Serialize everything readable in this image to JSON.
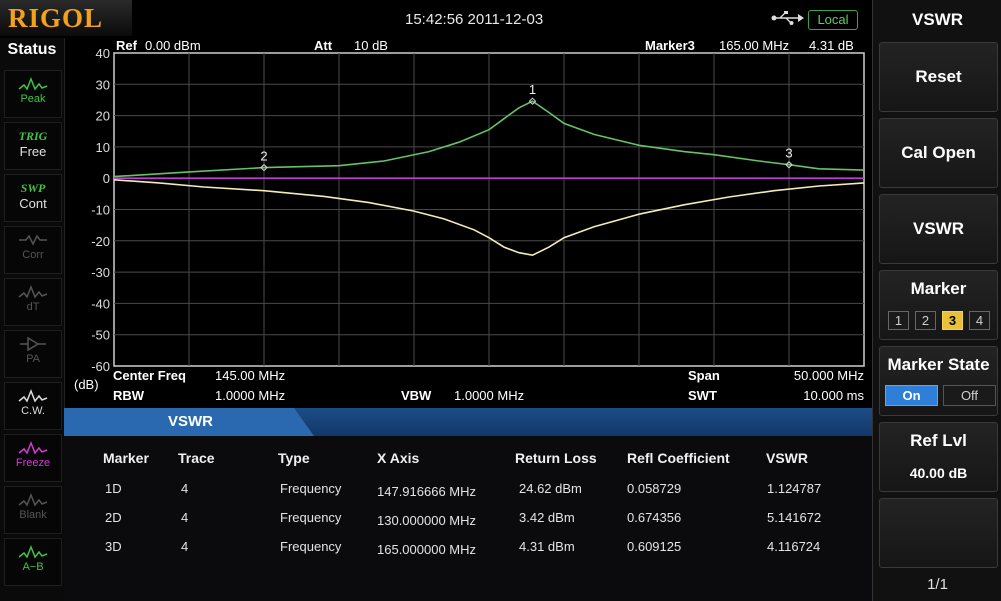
{
  "header": {
    "logo": "RIGOL",
    "datetime": "15:42:56 2011-12-03",
    "remote_status": "Local",
    "colors": {
      "logo": "#f3a21a",
      "local": "#5dd15d"
    }
  },
  "status": {
    "title": "Status",
    "items": [
      {
        "label": "Peak",
        "icon": "peak-icon",
        "color": "#44c244"
      },
      {
        "label": "TRIG",
        "value": "Free",
        "color": "#44c244"
      },
      {
        "label": "SWP",
        "value": "Cont",
        "color": "#44c244"
      },
      {
        "label": "Corr",
        "icon": "corr-icon",
        "color": "#555555"
      },
      {
        "label": "dT",
        "icon": "dt-icon",
        "color": "#555555"
      },
      {
        "label": "PA",
        "icon": "pa-icon",
        "color": "#555555"
      },
      {
        "label": "C.W.",
        "icon": "cw-icon",
        "color": "#dddddd"
      },
      {
        "label": "Freeze",
        "icon": "freeze-icon",
        "color": "#d43ad4"
      },
      {
        "label": "Blank",
        "icon": "blank-icon",
        "color": "#555555"
      },
      {
        "label": "A−B",
        "icon": "a-minus-b-icon",
        "color": "#44c244"
      }
    ]
  },
  "plot": {
    "ref_label": "Ref",
    "ref_value": "0.00 dBm",
    "att_label": "Att",
    "att_value": "10 dB",
    "marker_label": "Marker3",
    "marker_freq": "165.00 MHz",
    "marker_level": "4.31 dB",
    "yunit": "(dB)",
    "center_label": "Center Freq",
    "center_value": "145.00 MHz",
    "rbw_label": "RBW",
    "rbw_value": "1.0000 MHz",
    "vbw_label": "VBW",
    "vbw_value": "1.0000 MHz",
    "span_label": "Span",
    "span_value": "50.000 MHz",
    "swt_label": "SWT",
    "swt_value": "10.000 ms"
  },
  "chart_data": {
    "type": "line",
    "x_unit": "MHz",
    "xlim": [
      120,
      170
    ],
    "ylim": [
      -60,
      40
    ],
    "yticks": [
      40,
      30,
      20,
      10,
      0,
      -10,
      -20,
      -30,
      -40,
      -50,
      -60
    ],
    "grid": true,
    "series": [
      {
        "color": "#66c266",
        "x": [
          120,
          125,
          130,
          135,
          138,
          141,
          143,
          145,
          146,
          147,
          147.9,
          149,
          150,
          152,
          155,
          158,
          160,
          163,
          165,
          167,
          170
        ],
        "y": [
          0.5,
          2.0,
          3.4,
          4.0,
          5.5,
          8.5,
          11.5,
          15.5,
          19.0,
          22.5,
          24.6,
          21.0,
          17.5,
          14.0,
          10.5,
          8.5,
          7.5,
          5.5,
          4.3,
          3.0,
          2.6
        ]
      },
      {
        "color": "#f3ebb8",
        "x": [
          120,
          123,
          126,
          130,
          134,
          137,
          140,
          142,
          144,
          145,
          146,
          147,
          147.9,
          149,
          150,
          152,
          155,
          158,
          161,
          164,
          167,
          170
        ],
        "y": [
          -0.5,
          -1.5,
          -2.8,
          -4.0,
          -5.8,
          -7.8,
          -10.5,
          -13.0,
          -16.5,
          -19.0,
          -22.0,
          -23.8,
          -24.6,
          -22.0,
          -19.0,
          -15.5,
          -11.5,
          -8.5,
          -6.0,
          -4.0,
          -2.5,
          -1.5
        ]
      },
      {
        "color": "#c23ad8",
        "x": [
          120,
          170
        ],
        "y": [
          0,
          0
        ]
      }
    ],
    "markers": [
      {
        "label": "1",
        "x": 147.9,
        "y": 24.6
      },
      {
        "label": "2",
        "x": 130.0,
        "y": 3.4
      },
      {
        "label": "3",
        "x": 165.0,
        "y": 4.3
      }
    ]
  },
  "vswr_panel": {
    "tab_label": "VSWR",
    "headers": [
      "Marker",
      "Trace",
      "Type",
      "X Axis",
      "Return Loss",
      "Refl Coefficient",
      "VSWR"
    ],
    "rows": [
      [
        "1D",
        "4",
        "Frequency",
        "147.916666 MHz",
        "24.62 dBm",
        "0.058729",
        "1.124787"
      ],
      [
        "2D",
        "4",
        "Frequency",
        "130.000000 MHz",
        "3.42 dBm",
        "0.674356",
        "5.141672"
      ],
      [
        "3D",
        "4",
        "Frequency",
        "165.000000 MHz",
        "4.31 dBm",
        "0.609125",
        "4.116724"
      ]
    ]
  },
  "menu": {
    "title": "VSWR",
    "reset": "Reset",
    "cal_open": "Cal Open",
    "vswr": "VSWR",
    "marker": "Marker",
    "marker_options": [
      "1",
      "2",
      "3",
      "4"
    ],
    "marker_selected": "3",
    "marker_state": "Marker State",
    "state_on": "On",
    "state_off": "Off",
    "ref_lvl": "Ref Lvl",
    "ref_lvl_value": "40.00 dB",
    "page": "1/1"
  }
}
